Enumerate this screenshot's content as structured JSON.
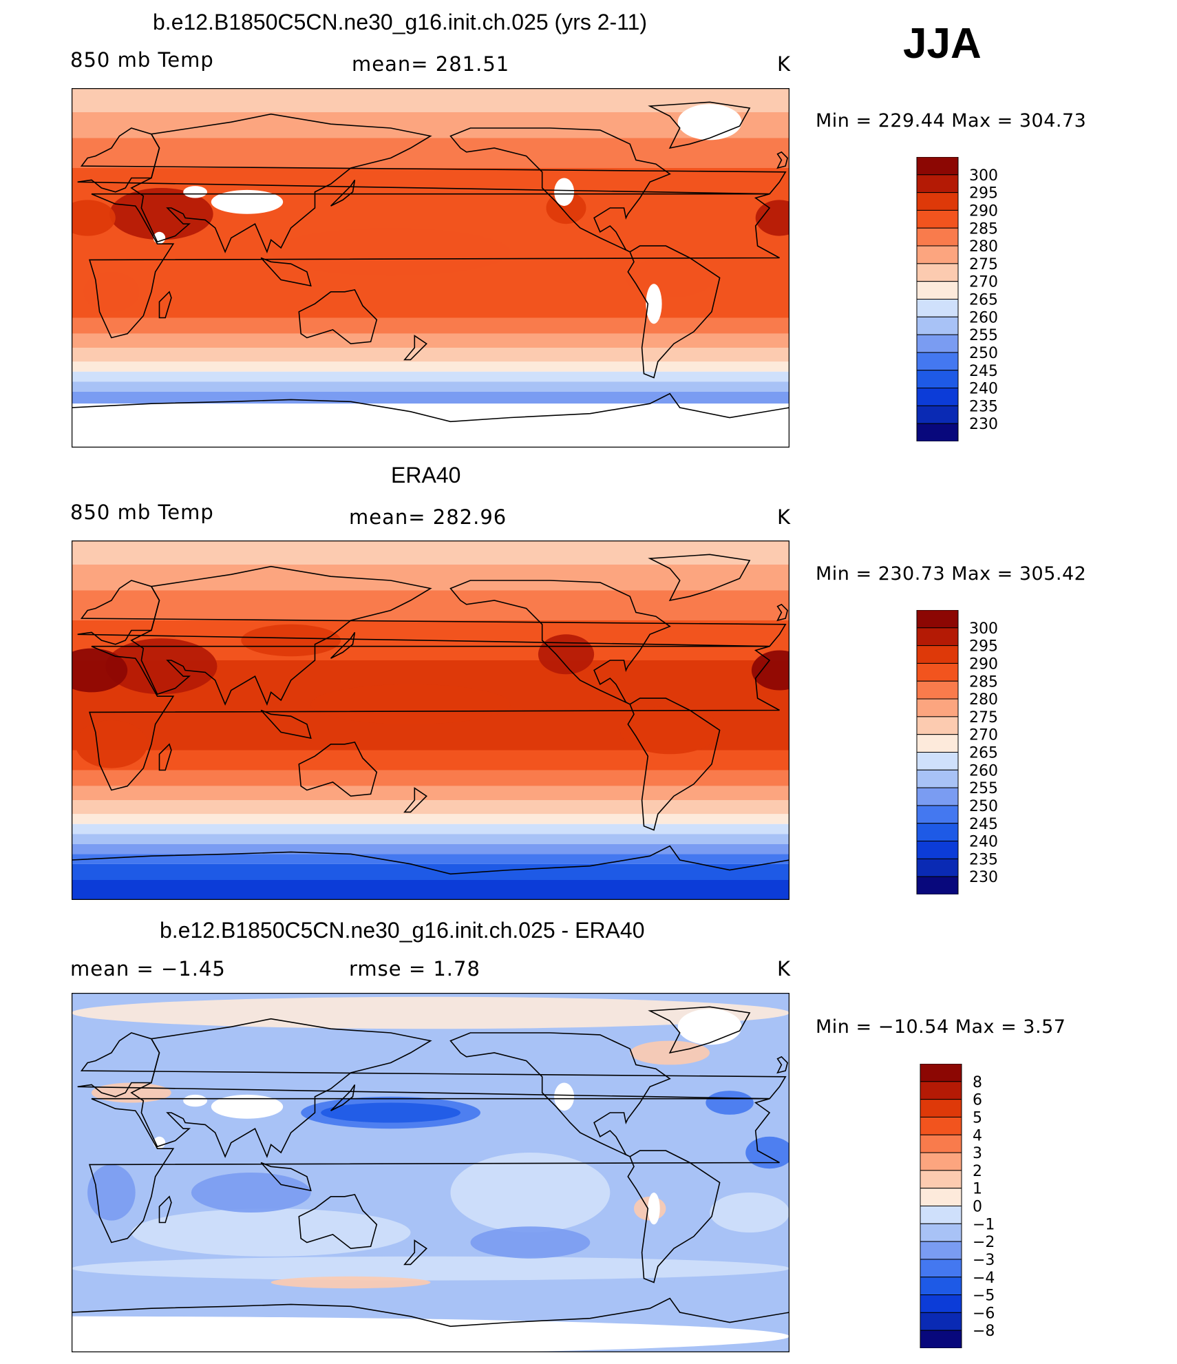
{
  "season": "JJA",
  "units": "K",
  "colors": {
    "abs_scale": [
      "#08087c",
      "#0a2ab4",
      "#0c3cd8",
      "#1e5ae6",
      "#4478f0",
      "#7a9cf2",
      "#a8c2f6",
      "#cfe0fb",
      "#fdeadb",
      "#fccbb0",
      "#fca57f",
      "#f97b4c",
      "#f2541e",
      "#de3909",
      "#b41a05",
      "#8c0703"
    ],
    "diff_scale": [
      "#08087c",
      "#0a2ab4",
      "#0c3cd8",
      "#1e5ae6",
      "#4478f0",
      "#7a9cf2",
      "#a8c2f6",
      "#cfe0fb",
      "#fdeadb",
      "#fccbb0",
      "#fca57f",
      "#f97b4c",
      "#f2541e",
      "#de3909",
      "#b41a05",
      "#8c0703"
    ],
    "ocean_abs": "#e8e0d8",
    "continents": "#000000"
  },
  "chart_data": [
    {
      "type": "heatmap",
      "id": "model",
      "title": "b.e12.B1850C5CN.ne30_g16.init.ch.025 (yrs 2-11)",
      "left_label": "850 mb Temp",
      "center_label": "mean=  281.51",
      "right_label": "K",
      "minmax_label": "Min  =  229.44  Max  =  304.73",
      "min": 229.44,
      "max": 304.73,
      "mean": 281.51,
      "colorbar_labels": [
        "300",
        "295",
        "290",
        "285",
        "280",
        "275",
        "270",
        "265",
        "260",
        "255",
        "250",
        "245",
        "240",
        "235",
        "230"
      ],
      "levels": [
        230,
        235,
        240,
        245,
        250,
        255,
        260,
        265,
        270,
        275,
        280,
        285,
        290,
        295,
        300
      ],
      "lat_range": [
        -90,
        90
      ],
      "lon_range": [
        0,
        360
      ]
    },
    {
      "type": "heatmap",
      "id": "obs",
      "title": "ERA40",
      "left_label": "850 mb Temp",
      "center_label": "mean=  282.96",
      "right_label": "K",
      "minmax_label": "Min  =  230.73  Max  =  305.42",
      "min": 230.73,
      "max": 305.42,
      "mean": 282.96,
      "colorbar_labels": [
        "300",
        "295",
        "290",
        "285",
        "280",
        "275",
        "270",
        "265",
        "260",
        "255",
        "250",
        "245",
        "240",
        "235",
        "230"
      ],
      "levels": [
        230,
        235,
        240,
        245,
        250,
        255,
        260,
        265,
        270,
        275,
        280,
        285,
        290,
        295,
        300
      ],
      "lat_range": [
        -90,
        90
      ],
      "lon_range": [
        0,
        360
      ]
    },
    {
      "type": "heatmap",
      "id": "diff",
      "title": "b.e12.B1850C5CN.ne30_g16.init.ch.025 - ERA40",
      "left_label": "mean  =    −1.45",
      "center_label": "rmse  =     1.78",
      "right_label": "K",
      "minmax_label": "Min  =  −10.54  Max  =     3.57",
      "min": -10.54,
      "max": 3.57,
      "mean": -1.45,
      "rmse": 1.78,
      "colorbar_labels": [
        "8",
        "6",
        "5",
        "4",
        "3",
        "2",
        "1",
        "0",
        "−1",
        "−2",
        "−3",
        "−4",
        "−5",
        "−6",
        "−8"
      ],
      "levels": [
        -8,
        -6,
        -5,
        -4,
        -3,
        -2,
        -1,
        0,
        1,
        2,
        3,
        4,
        5,
        6,
        8
      ],
      "lat_range": [
        -90,
        90
      ],
      "lon_range": [
        0,
        360
      ]
    }
  ]
}
